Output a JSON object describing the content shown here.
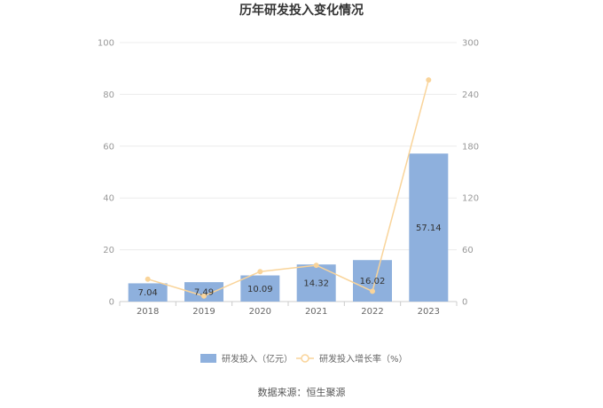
{
  "chart_data": {
    "type": "bar",
    "title": "历年研发投入变化情况",
    "categories": [
      "2018",
      "2019",
      "2020",
      "2021",
      "2022",
      "2023"
    ],
    "series": [
      {
        "name": "研发投入（亿元）",
        "type": "bar",
        "axis": "left",
        "color": "#8eb0dd",
        "values": [
          7.04,
          7.49,
          10.09,
          14.32,
          16.02,
          57.14
        ],
        "data_labels": [
          "7.04",
          "7.49",
          "10.09",
          "14.32",
          "16.02",
          "57.14"
        ]
      },
      {
        "name": "研发投入增长率（%）",
        "type": "line",
        "axis": "right",
        "color": "#f9d49a",
        "values": [
          26,
          6.4,
          34.7,
          42,
          11.9,
          256.7
        ]
      }
    ],
    "left_axis": {
      "ylim": [
        0,
        100
      ],
      "ticks": [
        "0",
        "20",
        "40",
        "60",
        "80",
        "100"
      ]
    },
    "right_axis": {
      "ylim": [
        0,
        300
      ],
      "ticks": [
        "0",
        "60",
        "120",
        "180",
        "240",
        "300"
      ]
    },
    "grid": true,
    "legend_position": "bottom"
  },
  "footer": {
    "source": "数据来源：恒生聚源"
  }
}
